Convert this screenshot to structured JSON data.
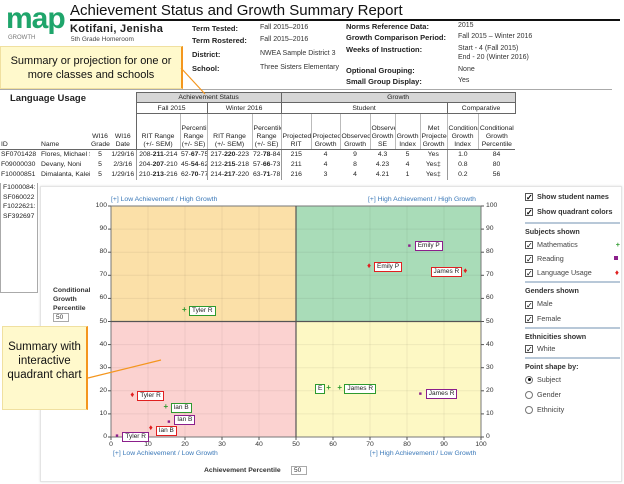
{
  "header": {
    "logo": "map",
    "logo_sub": "GROWTH",
    "title": "Achievement Status and Growth Summary Report",
    "student_name": "Kotifani, Jenisha",
    "class": "5th Grade Homeroom",
    "info_left": [
      {
        "label": "Term Tested:",
        "value": "Fall 2015–2016"
      },
      {
        "label": "Term Rostered:",
        "value": "Fall 2015–2016"
      },
      {
        "label": "District:",
        "value": "NWEA Sample District 3"
      },
      {
        "label": "School:",
        "value": "Three Sisters Elementary"
      }
    ],
    "info_right": [
      {
        "label": "Norms Reference Data:",
        "value": "2015"
      },
      {
        "label": "Growth Comparison Period:",
        "value": "Fall 2015 – Winter 2016"
      },
      {
        "label": "Weeks of Instruction:",
        "value": "Start - 4 (Fall 2015)",
        "value2": "End - 20 (Winter 2016)"
      },
      {
        "label": "Optional Grouping:",
        "value": "None"
      },
      {
        "label": "Small Group Display:",
        "value": "Yes"
      }
    ]
  },
  "callouts": {
    "top": "Summary or projection for one or more classes and schools",
    "chart": "Summary with interactive quadrant chart"
  },
  "table": {
    "subject": "Language Usage",
    "band_achievement": "Achievement Status",
    "band_growth": "Growth",
    "fall": "Fall 2015",
    "winter": "Winter 2016",
    "student": "Student",
    "comparative": "Comparative",
    "columns": [
      "ID",
      "Name",
      "WI16 Grade",
      "WI16 Date",
      "RIT Range (+/- SEM)",
      "Percentile Range (+/- SE)",
      "RIT Range (+/- SEM)",
      "Percentile Range (+/- SE)",
      "Projected RIT",
      "Projected Growth",
      "Observed Growth",
      "Observed Growth SE",
      "Growth Index",
      "Met Projected Growth",
      "Conditional Growth Index",
      "Conditional Growth Percentile"
    ],
    "rows": [
      {
        "id": "SF0701428",
        "name": "Flores, Michael S.",
        "grade": "5",
        "date": "1/29/16",
        "f_rit_lo": "208-",
        "f_rit": "211",
        "f_rit_hi": "-214",
        "f_pct_lo": "57-",
        "f_pct": "67",
        "f_pct_hi": "-75",
        "w_rit_lo": "217-",
        "w_rit": "220",
        "w_rit_hi": "-223",
        "w_pct_lo": "72-",
        "w_pct": "78",
        "w_pct_hi": "-84",
        "proj_rit": "215",
        "proj_growth": "4",
        "obs_growth": "9",
        "obs_se": "4.3",
        "gi": "5",
        "met": "Yes",
        "cgi": "1.0",
        "cgp": "84"
      },
      {
        "id": "F09000030",
        "name": "Devany, Noni",
        "grade": "5",
        "date": "2/3/16",
        "f_rit_lo": "204-",
        "f_rit": "207",
        "f_rit_hi": "-210",
        "f_pct_lo": "45-",
        "f_pct": "54",
        "f_pct_hi": "-62",
        "w_rit_lo": "212-",
        "w_rit": "215",
        "w_rit_hi": "-218",
        "w_pct_lo": "57-",
        "w_pct": "66",
        "w_pct_hi": "-73",
        "proj_rit": "211",
        "proj_growth": "4",
        "obs_growth": "8",
        "obs_se": "4.23",
        "gi": "4",
        "met": "Yes‡",
        "cgi": "0.8",
        "cgp": "80"
      },
      {
        "id": "F10000851",
        "name": "Dimalanta, Kaleigha",
        "grade": "5",
        "date": "1/29/16",
        "f_rit_lo": "210-",
        "f_rit": "213",
        "f_rit_hi": "-216",
        "f_pct_lo": "62-",
        "f_pct": "70",
        "f_pct_hi": "-77",
        "w_rit_lo": "214-",
        "w_rit": "217",
        "w_rit_hi": "-220",
        "w_pct_lo": "63-",
        "w_pct": "71",
        "w_pct_hi": "-78",
        "proj_rit": "216",
        "proj_growth": "3",
        "obs_growth": "4",
        "obs_se": "4.21",
        "gi": "1",
        "met": "Yes‡",
        "cgi": "0.2",
        "cgp": "56"
      }
    ],
    "more_ids": [
      "F1000084:",
      "SF060022",
      "F1022621:",
      "SF392697"
    ]
  },
  "options": {
    "show_names": "Show student names",
    "show_colors": "Show quadrant colors",
    "subjects_h": "Subjects shown",
    "subjects": [
      "Mathematics",
      "Reading",
      "Language Usage"
    ],
    "genders_h": "Genders shown",
    "genders": [
      "Male",
      "Female"
    ],
    "ethnicities_h": "Ethnicities shown",
    "ethnicities": [
      "White"
    ],
    "shape_h": "Point shape by:",
    "shapes": [
      "Subject",
      "Gender",
      "Ethnicity"
    ],
    "shape_selected": "Subject"
  },
  "colors": {
    "math": "#2e9a2e",
    "reading": "#8b1f8b",
    "lang": "#e02020",
    "q_tl": "#fbe0a8",
    "q_tr": "#a9dcb8",
    "q_bl": "#fbd2d0",
    "q_br": "#fdf8c4"
  },
  "chart_data": {
    "type": "scatter",
    "xlabel": "Achievement Percentile",
    "ylabel": "Conditional Growth Percentile",
    "x_input": "50",
    "y_input": "50",
    "xlim": [
      0,
      100
    ],
    "ylim": [
      0,
      100
    ],
    "xticks": [
      0,
      10,
      20,
      30,
      40,
      50,
      60,
      70,
      80,
      90,
      100
    ],
    "yticks": [
      0,
      10,
      20,
      30,
      40,
      50,
      60,
      70,
      80,
      90,
      100
    ],
    "quadrants": {
      "tl": "[+] Low Achievement / High Growth",
      "tr": "[+] High Achievement / High Growth",
      "bl": "[+] Low Achievement / Low Growth",
      "br": "[+] High Achievement / Low Growth"
    },
    "points": [
      {
        "name": "Tyler R",
        "subject": "math",
        "x": 20,
        "y": 55
      },
      {
        "name": "Emily P",
        "subject": "reading",
        "x": 81,
        "y": 83
      },
      {
        "name": "Emily P",
        "subject": "lang",
        "x": 70,
        "y": 74
      },
      {
        "name": "James R",
        "subject": "lang",
        "x": 96,
        "y": 72
      },
      {
        "name": "Tyler R",
        "subject": "lang",
        "x": 6,
        "y": 18
      },
      {
        "name": "Ian B",
        "subject": "math",
        "x": 15,
        "y": 13
      },
      {
        "name": "Ian B",
        "subject": "reading",
        "x": 16,
        "y": 7
      },
      {
        "name": "Ian B",
        "subject": "lang",
        "x": 11,
        "y": 4
      },
      {
        "name": "Tyler R",
        "subject": "reading",
        "x": 2,
        "y": 1
      },
      {
        "name": "E",
        "subject": "math",
        "x": 59,
        "y": 21
      },
      {
        "name": "James R",
        "subject": "math",
        "x": 62,
        "y": 21
      },
      {
        "name": "James R",
        "subject": "reading",
        "x": 84,
        "y": 19
      }
    ]
  }
}
